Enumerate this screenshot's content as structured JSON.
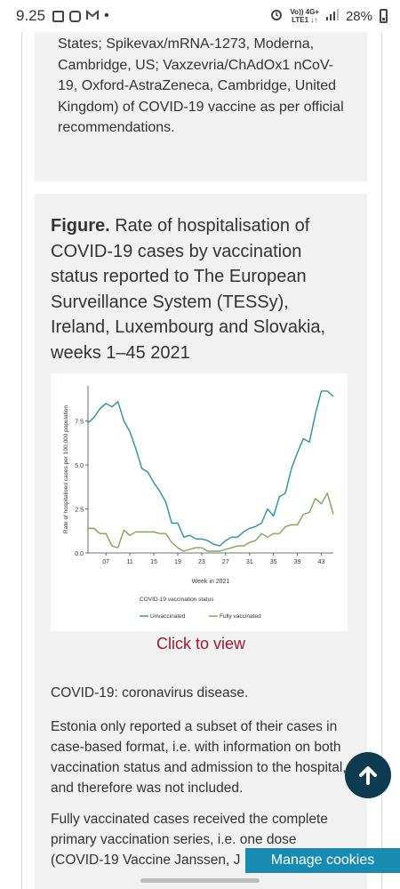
{
  "status_bar": {
    "time": "9.25",
    "network_top": "Vo)) 4G+",
    "network_bottom": "LTE1 ↓↑",
    "battery": "28%"
  },
  "top_card": {
    "text": "States; Spikevax/mRNA-1273, Moderna, Cambridge, US; Vaxzevria/ChAdOx1 nCoV-19, Oxford-AstraZeneca, Cambridge, United Kingdom) of COVID-19 vaccine as per official recommendations."
  },
  "figure": {
    "label": "Figure.",
    "title": "Rate of hospitalisation of COVID-19 cases by vaccination status reported to The European Surveillance System (TESSy), Ireland, Luxembourg and Slovakia, weeks 1–45 2021",
    "click_to_view": "Click to view"
  },
  "chart_data": {
    "type": "line",
    "xlabel": "Week in 2021",
    "ylabel": "Rate of hospitalised cases per 100,000 population",
    "x_ticks": [
      7,
      11,
      15,
      19,
      23,
      27,
      31,
      35,
      39,
      43
    ],
    "x_tick_labels": [
      "07",
      "11",
      "15",
      "19",
      "23",
      "27",
      "31",
      "35",
      "39",
      "43"
    ],
    "y_ticks": [
      0.0,
      2.5,
      5.0,
      7.5
    ],
    "y_tick_labels": [
      "0.0",
      "2.5",
      "5.0",
      "7.5"
    ],
    "xlim": [
      4,
      45
    ],
    "ylim": [
      0,
      9.5
    ],
    "legend_title": "COVID-19 vaccination status",
    "legend_position": "bottom",
    "series": [
      {
        "name": "Unvaccinated",
        "color": "#2a8fa3",
        "x": [
          4,
          5,
          6,
          7,
          8,
          9,
          10,
          11,
          12,
          13,
          14,
          15,
          16,
          17,
          18,
          19,
          20,
          21,
          22,
          23,
          24,
          25,
          26,
          27,
          28,
          29,
          30,
          31,
          32,
          33,
          34,
          35,
          36,
          37,
          38,
          39,
          40,
          41,
          42,
          43,
          44,
          45
        ],
        "y": [
          7.4,
          7.7,
          8.2,
          8.5,
          8.3,
          8.6,
          7.5,
          6.9,
          5.9,
          4.8,
          4.6,
          4.0,
          3.5,
          2.9,
          1.7,
          1.7,
          0.9,
          1.0,
          0.8,
          0.8,
          0.7,
          0.5,
          0.4,
          0.7,
          0.9,
          0.9,
          1.2,
          1.4,
          1.5,
          1.7,
          2.5,
          2.1,
          3.2,
          3.4,
          4.8,
          5.7,
          6.5,
          6.3,
          7.9,
          9.2,
          9.2,
          8.9
        ]
      },
      {
        "name": "Fully vaccinated",
        "color": "#7fa35a",
        "x": [
          4,
          5,
          6,
          7,
          8,
          9,
          10,
          11,
          12,
          13,
          14,
          15,
          16,
          17,
          18,
          19,
          20,
          21,
          22,
          23,
          24,
          25,
          26,
          27,
          28,
          29,
          30,
          31,
          32,
          33,
          34,
          35,
          36,
          37,
          38,
          39,
          40,
          41,
          42,
          43,
          44,
          45
        ],
        "y": [
          1.4,
          1.4,
          1.1,
          1.1,
          0.4,
          0.3,
          1.3,
          1.0,
          1.2,
          1.2,
          1.2,
          1.2,
          1.1,
          1.1,
          0.6,
          0.3,
          0.1,
          0.2,
          0.3,
          0.3,
          0.1,
          0.1,
          0.1,
          0.2,
          0.3,
          0.4,
          0.4,
          0.6,
          0.7,
          1.1,
          0.9,
          1.1,
          1.1,
          1.5,
          1.6,
          1.6,
          2.2,
          2.3,
          3.1,
          2.8,
          3.4,
          2.2
        ]
      }
    ]
  },
  "paragraphs": {
    "p1": "COVID-19: coronavirus disease.",
    "p2": "Estonia only reported a subset of their cases in case-based format, i.e. with information on both vaccination status and admission to the hospital, and therefore was not included.",
    "p3": "Fully vaccinated cases received the complete primary vaccination series, i.e. one dose (COVID-19 Vaccine Janssen, J"
  },
  "manage_cookies": "Manage cookies",
  "icons": {
    "scroll_top": "arrow-up-icon"
  }
}
